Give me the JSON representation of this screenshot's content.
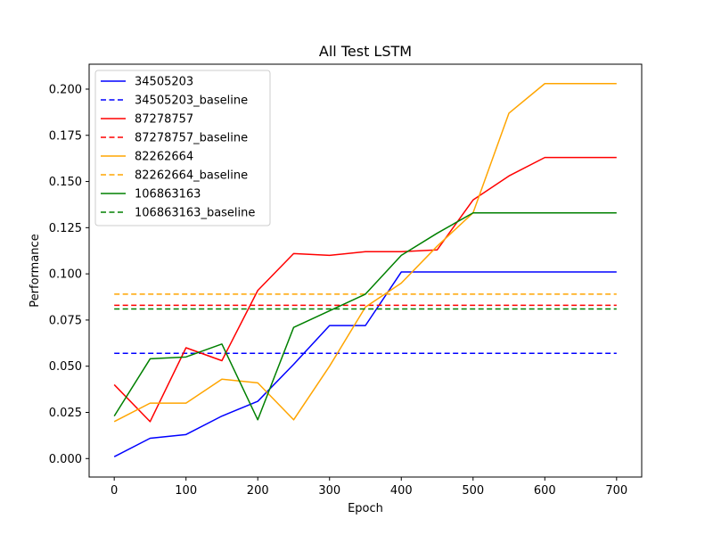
{
  "chart_data": {
    "type": "line",
    "title": "All Test LSTM",
    "xlabel": "Epoch",
    "ylabel": "Performance",
    "xlim": [
      -35,
      735
    ],
    "ylim": [
      -0.01,
      0.2135
    ],
    "xticks": [
      0,
      100,
      200,
      300,
      400,
      500,
      600,
      700
    ],
    "xtick_labels": [
      "0",
      "100",
      "200",
      "300",
      "400",
      "500",
      "600",
      "700"
    ],
    "yticks": [
      0.0,
      0.025,
      0.05,
      0.075,
      0.1,
      0.125,
      0.15,
      0.175,
      0.2
    ],
    "ytick_labels": [
      "0.000",
      "0.025",
      "0.050",
      "0.075",
      "0.100",
      "0.125",
      "0.150",
      "0.175",
      "0.200"
    ],
    "grid": false,
    "legend_position": "top-left",
    "x": [
      0,
      50,
      100,
      150,
      200,
      250,
      300,
      350,
      400,
      450,
      500,
      550,
      600,
      650,
      700
    ],
    "series": [
      {
        "name": "34505203",
        "color": "#0000ff",
        "style": "solid",
        "values": [
          0.001,
          0.011,
          0.013,
          0.023,
          0.031,
          0.051,
          0.072,
          0.072,
          0.101,
          0.101,
          0.101,
          0.101,
          0.101,
          0.101,
          0.101
        ]
      },
      {
        "name": "34505203_baseline",
        "color": "#0000ff",
        "style": "dashed",
        "values": [
          0.057,
          0.057,
          0.057,
          0.057,
          0.057,
          0.057,
          0.057,
          0.057,
          0.057,
          0.057,
          0.057,
          0.057,
          0.057,
          0.057,
          0.057
        ]
      },
      {
        "name": "87278757",
        "color": "#ff0000",
        "style": "solid",
        "values": [
          0.04,
          0.02,
          0.06,
          0.053,
          0.091,
          0.111,
          0.11,
          0.112,
          0.112,
          0.113,
          0.14,
          0.153,
          0.163,
          0.163,
          0.163
        ]
      },
      {
        "name": "87278757_baseline",
        "color": "#ff0000",
        "style": "dashed",
        "values": [
          0.083,
          0.083,
          0.083,
          0.083,
          0.083,
          0.083,
          0.083,
          0.083,
          0.083,
          0.083,
          0.083,
          0.083,
          0.083,
          0.083,
          0.083
        ]
      },
      {
        "name": "82262664",
        "color": "#ffa500",
        "style": "solid",
        "values": [
          0.02,
          0.03,
          0.03,
          0.043,
          0.041,
          0.021,
          0.05,
          0.082,
          0.095,
          0.115,
          0.133,
          0.187,
          0.203,
          0.203,
          0.203
        ]
      },
      {
        "name": "82262664_baseline",
        "color": "#ffa500",
        "style": "dashed",
        "values": [
          0.089,
          0.089,
          0.089,
          0.089,
          0.089,
          0.089,
          0.089,
          0.089,
          0.089,
          0.089,
          0.089,
          0.089,
          0.089,
          0.089,
          0.089
        ]
      },
      {
        "name": "106863163",
        "color": "#008000",
        "style": "solid",
        "values": [
          0.023,
          0.054,
          0.055,
          0.062,
          0.021,
          0.071,
          0.08,
          0.089,
          0.11,
          0.122,
          0.133,
          0.133,
          0.133,
          0.133,
          0.133
        ]
      },
      {
        "name": "106863163_baseline",
        "color": "#008000",
        "style": "dashed",
        "values": [
          0.081,
          0.081,
          0.081,
          0.081,
          0.081,
          0.081,
          0.081,
          0.081,
          0.081,
          0.081,
          0.081,
          0.081,
          0.081,
          0.081,
          0.081
        ]
      }
    ]
  }
}
